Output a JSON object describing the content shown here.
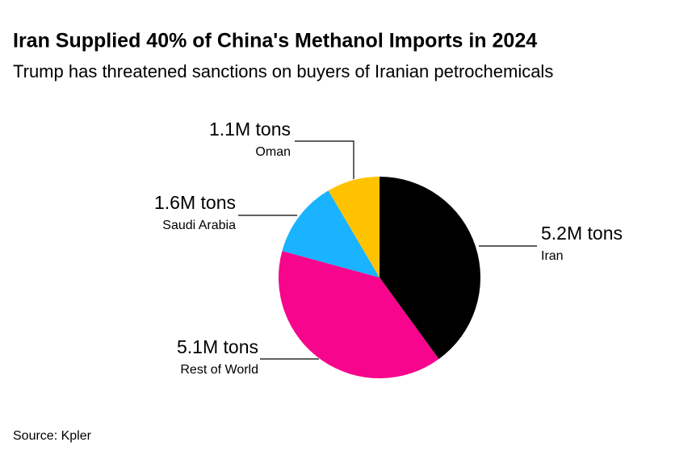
{
  "chart_data": {
    "type": "pie",
    "title": "Iran Supplied 40% of China's Methanol Imports in 2024",
    "subtitle": "Trump has threatened sanctions on buyers of Iranian petrochemicals",
    "source": "Source: Kpler",
    "categories": [
      "Iran",
      "Rest of World",
      "Saudi Arabia",
      "Oman"
    ],
    "values": [
      5.2,
      5.1,
      1.6,
      1.1
    ],
    "value_labels": [
      "5.2M tons",
      "5.1M tons",
      "1.6M tons",
      "1.1M tons"
    ],
    "colors": [
      "#000000",
      "#f7058c",
      "#19b3ff",
      "#ffc200"
    ]
  }
}
